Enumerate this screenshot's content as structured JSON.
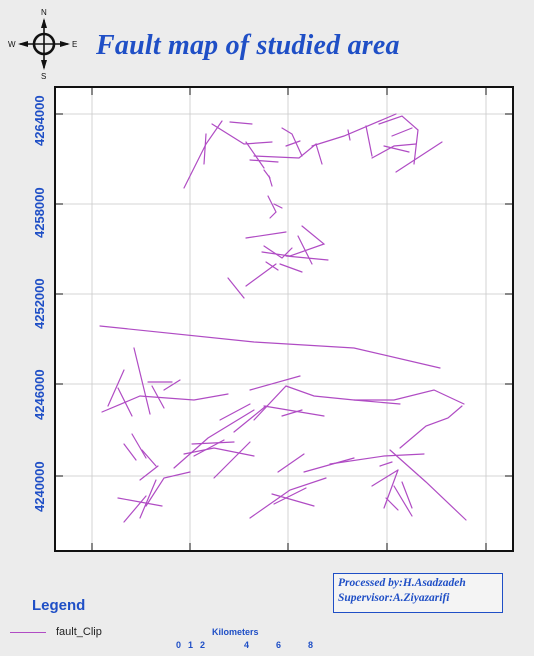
{
  "title": "Fault map of studied area",
  "compass": {
    "icon": "north-arrow-icon",
    "n": "N",
    "s": "S",
    "e": "E",
    "w": "W"
  },
  "map": {
    "northing_labels": [
      "4264000",
      "4258000",
      "4252000",
      "4246000",
      "4240000"
    ],
    "fault_color": "#b04cc4",
    "grid_color": "#c8c8c8"
  },
  "credits": {
    "processed": "Processed by:H.Asadzadeh",
    "supervisor": "Supervisor:A.Ziyazarifi"
  },
  "legend": {
    "title": "Legend",
    "items": [
      {
        "label": "fault_Clip",
        "color": "#b04cc4"
      }
    ]
  },
  "scale": {
    "title": "Kilometers",
    "labels": [
      "0",
      "1",
      "2",
      "4",
      "6",
      "8"
    ]
  },
  "colors": {
    "accent": "#1f4fc6",
    "fault": "#b04cc4",
    "background": "#ececec"
  }
}
